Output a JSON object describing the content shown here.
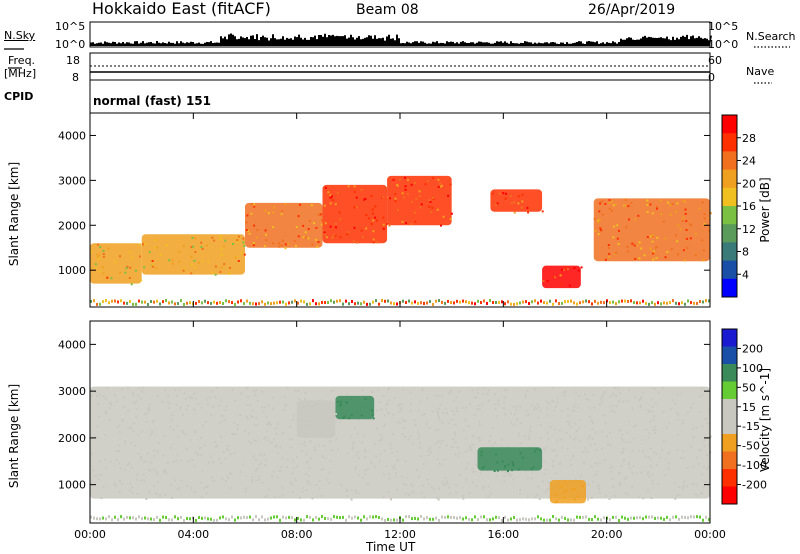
{
  "header": {
    "station": "Hokkaido East (fitACF)",
    "beam": "Beam 08",
    "date": "26/Apr/2019"
  },
  "top_panels": {
    "nsky_label": "N.Sky",
    "nsearch_label": "N.Search",
    "nsky_ticks": [
      "10^5",
      "10^0"
    ],
    "nsearch_ticks": [
      "10^5",
      "10^0"
    ],
    "freq_label": "Freq.",
    "freq_unit": "[MHz]",
    "freq_ticks": [
      "18",
      "8"
    ],
    "nave_label": "Nave",
    "nave_ticks": [
      "60",
      "0"
    ],
    "cpid_label": "CPID",
    "cpid_value": "normal (fast) 151"
  },
  "colors": {
    "power_scale": [
      "#0000ff",
      "#1a4fa8",
      "#3a7a78",
      "#5a9a5a",
      "#7ac043",
      "#f0c020",
      "#f0a020",
      "#f07020",
      "#ff3000",
      "#ff0000"
    ],
    "velocity_scale": [
      "#1a1ad0",
      "#1a4fa8",
      "#3a8a5a",
      "#66cc33",
      "#c8c8c0",
      "#c8c8c0",
      "#f0a020",
      "#f07020",
      "#ff3000",
      "#ff0000"
    ],
    "fill_gray": "#c8c8c0",
    "echo_red": "#ff2a10",
    "echo_orange": "#f07a20"
  },
  "chart_data": [
    {
      "type": "heatmap",
      "title": "Power",
      "xlabel": "Time UT",
      "ylabel": "Slant Range [km]",
      "xlim": [
        "00:00",
        "24:00"
      ],
      "ylim": [
        180,
        4500
      ],
      "x_ticks": [
        "00:00",
        "04:00",
        "08:00",
        "12:00",
        "16:00",
        "20:00",
        "00:00"
      ],
      "y_ticks": [
        1000,
        2000,
        3000,
        4000
      ],
      "colorbar": {
        "label": "Power [dB]",
        "ticks": [
          4,
          8,
          12,
          16,
          20,
          24,
          28
        ],
        "range": [
          0,
          32
        ]
      },
      "echo_regions": [
        {
          "t_start": 0.0,
          "t_end": 2.0,
          "range_low": 700,
          "range_high": 1600,
          "power_db": 22
        },
        {
          "t_start": 2.0,
          "t_end": 6.0,
          "range_low": 900,
          "range_high": 1800,
          "power_db": 22
        },
        {
          "t_start": 6.0,
          "t_end": 9.0,
          "range_low": 1500,
          "range_high": 2500,
          "power_db": 24
        },
        {
          "t_start": 9.0,
          "t_end": 11.5,
          "range_low": 1600,
          "range_high": 2900,
          "power_db": 28
        },
        {
          "t_start": 11.5,
          "t_end": 14.0,
          "range_low": 2000,
          "range_high": 3100,
          "power_db": 28
        },
        {
          "t_start": 15.5,
          "t_end": 17.5,
          "range_low": 2300,
          "range_high": 2800,
          "power_db": 28
        },
        {
          "t_start": 17.5,
          "t_end": 19.0,
          "range_low": 600,
          "range_high": 1100,
          "power_db": 30
        },
        {
          "t_start": 19.5,
          "t_end": 24.0,
          "range_low": 1200,
          "range_high": 2600,
          "power_db": 24
        }
      ]
    },
    {
      "type": "heatmap",
      "title": "Velocity",
      "xlabel": "Time UT",
      "ylabel": "Slant Range [km]",
      "xlim": [
        "00:00",
        "24:00"
      ],
      "ylim": [
        180,
        4500
      ],
      "x_ticks": [
        "00:00",
        "04:00",
        "08:00",
        "12:00",
        "16:00",
        "20:00",
        "00:00"
      ],
      "y_ticks": [
        1000,
        2000,
        3000,
        4000
      ],
      "colorbar": {
        "label": "Velocity [m s^-1]",
        "ticks": [
          200,
          100,
          50,
          15,
          -15,
          -50,
          -100,
          -200
        ]
      },
      "echo_regions": [
        {
          "t_start": 0.0,
          "t_end": 24.0,
          "range_low": 700,
          "range_high": 3100,
          "velocity_ms": 0
        },
        {
          "t_start": 9.5,
          "t_end": 11.0,
          "range_low": 2400,
          "range_high": 2900,
          "velocity_ms": 60
        },
        {
          "t_start": 8.0,
          "t_end": 9.5,
          "range_low": 2000,
          "range_high": 2800,
          "velocity_ms": -40
        },
        {
          "t_start": 15.0,
          "t_end": 17.5,
          "range_low": 1300,
          "range_high": 1800,
          "velocity_ms": 60
        },
        {
          "t_start": 17.8,
          "t_end": 19.2,
          "range_low": 600,
          "range_high": 1100,
          "velocity_ms": -60
        }
      ]
    }
  ]
}
